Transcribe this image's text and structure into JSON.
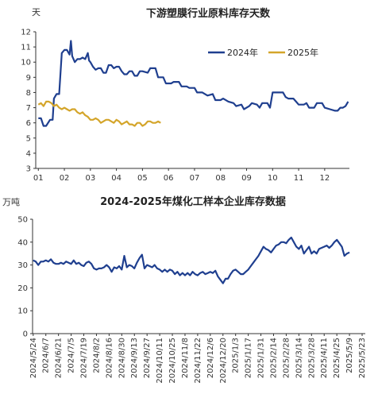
{
  "chart_data": [
    {
      "type": "line",
      "title": "下游塑膜行业原料库存天数",
      "ylabel": "天",
      "ylim": [
        3,
        12
      ],
      "yticks": [
        3,
        4,
        5,
        6,
        7,
        8,
        9,
        10,
        11,
        12
      ],
      "xlim": [
        0.9,
        12.95
      ],
      "xticks": [
        1,
        2,
        3,
        4,
        5,
        6,
        7,
        8,
        9,
        10,
        11,
        12
      ],
      "xtick_labels": [
        "01",
        "02",
        "03",
        "04",
        "05",
        "06",
        "07",
        "08",
        "09",
        "10",
        "11",
        "12"
      ],
      "grid": false,
      "legend": "top-right",
      "series": [
        {
          "name": "2024年",
          "color": "#1f3f8f",
          "points": [
            [
              1.0,
              6.3
            ],
            [
              1.1,
              6.3
            ],
            [
              1.2,
              5.8
            ],
            [
              1.3,
              5.8
            ],
            [
              1.45,
              6.2
            ],
            [
              1.55,
              6.2
            ],
            [
              1.6,
              7.6
            ],
            [
              1.7,
              7.9
            ],
            [
              1.8,
              7.9
            ],
            [
              1.9,
              10.6
            ],
            [
              2.0,
              10.8
            ],
            [
              2.1,
              10.8
            ],
            [
              2.2,
              10.5
            ],
            [
              2.25,
              11.4
            ],
            [
              2.3,
              10.4
            ],
            [
              2.4,
              10.0
            ],
            [
              2.5,
              10.2
            ],
            [
              2.6,
              10.2
            ],
            [
              2.7,
              10.3
            ],
            [
              2.8,
              10.2
            ],
            [
              2.9,
              10.6
            ],
            [
              2.95,
              10.1
            ],
            [
              3.0,
              10.0
            ],
            [
              3.1,
              9.7
            ],
            [
              3.2,
              9.5
            ],
            [
              3.3,
              9.6
            ],
            [
              3.4,
              9.6
            ],
            [
              3.5,
              9.3
            ],
            [
              3.6,
              9.3
            ],
            [
              3.7,
              9.8
            ],
            [
              3.8,
              9.8
            ],
            [
              3.9,
              9.6
            ],
            [
              4.0,
              9.7
            ],
            [
              4.1,
              9.7
            ],
            [
              4.2,
              9.4
            ],
            [
              4.3,
              9.2
            ],
            [
              4.4,
              9.2
            ],
            [
              4.5,
              9.4
            ],
            [
              4.6,
              9.4
            ],
            [
              4.7,
              9.1
            ],
            [
              4.8,
              9.1
            ],
            [
              4.9,
              9.4
            ],
            [
              5.0,
              9.4
            ],
            [
              5.2,
              9.3
            ],
            [
              5.3,
              9.6
            ],
            [
              5.5,
              9.6
            ],
            [
              5.6,
              9.0
            ],
            [
              5.8,
              9.0
            ],
            [
              5.9,
              8.6
            ],
            [
              6.1,
              8.6
            ],
            [
              6.2,
              8.7
            ],
            [
              6.4,
              8.7
            ],
            [
              6.5,
              8.4
            ],
            [
              6.7,
              8.4
            ],
            [
              6.8,
              8.3
            ],
            [
              7.0,
              8.3
            ],
            [
              7.1,
              8.0
            ],
            [
              7.3,
              8.0
            ],
            [
              7.5,
              7.8
            ],
            [
              7.7,
              7.9
            ],
            [
              7.8,
              7.5
            ],
            [
              8.0,
              7.5
            ],
            [
              8.1,
              7.6
            ],
            [
              8.3,
              7.4
            ],
            [
              8.5,
              7.3
            ],
            [
              8.6,
              7.1
            ],
            [
              8.8,
              7.2
            ],
            [
              8.9,
              6.9
            ],
            [
              9.1,
              7.1
            ],
            [
              9.2,
              7.3
            ],
            [
              9.4,
              7.2
            ],
            [
              9.5,
              7.0
            ],
            [
              9.6,
              7.3
            ],
            [
              9.8,
              7.3
            ],
            [
              9.9,
              7.0
            ],
            [
              10.0,
              8.0
            ],
            [
              10.2,
              8.0
            ],
            [
              10.4,
              8.0
            ],
            [
              10.5,
              7.7
            ],
            [
              10.6,
              7.6
            ],
            [
              10.8,
              7.6
            ],
            [
              10.9,
              7.4
            ],
            [
              11.0,
              7.2
            ],
            [
              11.2,
              7.2
            ],
            [
              11.3,
              7.3
            ],
            [
              11.4,
              7.0
            ],
            [
              11.6,
              7.0
            ],
            [
              11.7,
              7.3
            ],
            [
              11.9,
              7.3
            ],
            [
              12.0,
              7.0
            ],
            [
              12.2,
              6.9
            ],
            [
              12.4,
              6.8
            ],
            [
              12.5,
              6.8
            ],
            [
              12.6,
              7.0
            ],
            [
              12.7,
              7.0
            ],
            [
              12.8,
              7.1
            ],
            [
              12.9,
              7.4
            ]
          ]
        },
        {
          "name": "2025年",
          "color": "#d4a52a",
          "points": [
            [
              1.0,
              7.2
            ],
            [
              1.1,
              7.3
            ],
            [
              1.2,
              7.1
            ],
            [
              1.3,
              7.4
            ],
            [
              1.4,
              7.4
            ],
            [
              1.5,
              7.3
            ],
            [
              1.6,
              7.1
            ],
            [
              1.7,
              7.2
            ],
            [
              1.8,
              7.0
            ],
            [
              1.9,
              6.9
            ],
            [
              2.0,
              7.0
            ],
            [
              2.1,
              6.9
            ],
            [
              2.2,
              6.8
            ],
            [
              2.3,
              6.9
            ],
            [
              2.4,
              6.9
            ],
            [
              2.5,
              6.7
            ],
            [
              2.6,
              6.6
            ],
            [
              2.7,
              6.7
            ],
            [
              2.8,
              6.5
            ],
            [
              2.9,
              6.4
            ],
            [
              3.0,
              6.2
            ],
            [
              3.1,
              6.2
            ],
            [
              3.2,
              6.3
            ],
            [
              3.3,
              6.2
            ],
            [
              3.4,
              6.0
            ],
            [
              3.5,
              6.1
            ],
            [
              3.6,
              6.2
            ],
            [
              3.7,
              6.2
            ],
            [
              3.8,
              6.1
            ],
            [
              3.9,
              6.0
            ],
            [
              4.0,
              6.2
            ],
            [
              4.1,
              6.1
            ],
            [
              4.2,
              5.9
            ],
            [
              4.3,
              6.0
            ],
            [
              4.4,
              6.1
            ],
            [
              4.5,
              5.9
            ],
            [
              4.6,
              5.9
            ],
            [
              4.7,
              5.8
            ],
            [
              4.8,
              6.0
            ],
            [
              4.9,
              6.0
            ],
            [
              5.0,
              5.8
            ],
            [
              5.1,
              5.9
            ],
            [
              5.2,
              6.1
            ],
            [
              5.3,
              6.1
            ],
            [
              5.4,
              6.0
            ],
            [
              5.5,
              6.0
            ],
            [
              5.6,
              6.1
            ],
            [
              5.7,
              6.0
            ]
          ]
        }
      ]
    },
    {
      "type": "line",
      "title": "2024-2025年煤化工样本企业库存数据",
      "ylabel": "万吨",
      "ylim": [
        0,
        50
      ],
      "yticks": [
        0,
        10,
        20,
        30,
        40,
        50
      ],
      "grid": false,
      "legend": "none",
      "x": [
        "2024/5/24",
        "2024/6/7",
        "2024/6/21",
        "2024/7/5",
        "2024/7/19",
        "2024/8/2",
        "2024/8/16",
        "2024/8/30",
        "2024/9/13",
        "2024/9/27",
        "2024/10/11",
        "2024/10/25",
        "2024/11/8",
        "2024/11/22",
        "2024/12/6",
        "2024/12/20",
        "2025/1/3",
        "2025/1/17",
        "2025/1/31",
        "2025/2/14",
        "2025/2/28",
        "2025/3/14",
        "2025/3/28",
        "2025/4/11",
        "2025/4/25",
        "2025/5/9",
        "2025/5/23"
      ],
      "series": [
        {
          "name": "",
          "color": "#1f3f8f",
          "points": [
            [
              0,
              32
            ],
            [
              0.2,
              31.5
            ],
            [
              0.4,
              30
            ],
            [
              0.6,
              31.5
            ],
            [
              0.8,
              31.5
            ],
            [
              1.0,
              32
            ],
            [
              1.2,
              31.5
            ],
            [
              1.4,
              32.5
            ],
            [
              1.6,
              31
            ],
            [
              1.8,
              30.5
            ],
            [
              2.0,
              30.5
            ],
            [
              2.2,
              31
            ],
            [
              2.4,
              30.5
            ],
            [
              2.6,
              31.5
            ],
            [
              2.8,
              31
            ],
            [
              3.0,
              30.5
            ],
            [
              3.2,
              32
            ],
            [
              3.4,
              30.5
            ],
            [
              3.6,
              31
            ],
            [
              3.8,
              30
            ],
            [
              4.0,
              29.5
            ],
            [
              4.2,
              31
            ],
            [
              4.4,
              31.5
            ],
            [
              4.6,
              30.5
            ],
            [
              4.8,
              28.5
            ],
            [
              5.0,
              28
            ],
            [
              5.2,
              28.5
            ],
            [
              5.4,
              28.5
            ],
            [
              5.6,
              29
            ],
            [
              5.8,
              30
            ],
            [
              6.0,
              29
            ],
            [
              6.2,
              27
            ],
            [
              6.4,
              29
            ],
            [
              6.6,
              28.5
            ],
            [
              6.8,
              29.5
            ],
            [
              7.0,
              28
            ],
            [
              7.2,
              34
            ],
            [
              7.4,
              29
            ],
            [
              7.6,
              30
            ],
            [
              7.8,
              29.5
            ],
            [
              8.0,
              28.5
            ],
            [
              8.2,
              31
            ],
            [
              8.4,
              33
            ],
            [
              8.6,
              34.5
            ],
            [
              8.8,
              28.5
            ],
            [
              9.0,
              30
            ],
            [
              9.2,
              29.5
            ],
            [
              9.4,
              29
            ],
            [
              9.6,
              30
            ],
            [
              9.8,
              28.5
            ],
            [
              10.0,
              28
            ],
            [
              10.2,
              27
            ],
            [
              10.4,
              28
            ],
            [
              10.6,
              27
            ],
            [
              10.8,
              28
            ],
            [
              11.0,
              27.5
            ],
            [
              11.2,
              26
            ],
            [
              11.4,
              27
            ],
            [
              11.6,
              25.5
            ],
            [
              11.8,
              26.5
            ],
            [
              12.0,
              25.5
            ],
            [
              12.2,
              26.5
            ],
            [
              12.4,
              25.5
            ],
            [
              12.6,
              27
            ],
            [
              12.8,
              26
            ],
            [
              13.0,
              25.5
            ],
            [
              13.2,
              26.5
            ],
            [
              13.4,
              27
            ],
            [
              13.6,
              26
            ],
            [
              13.8,
              26.5
            ],
            [
              14.0,
              27
            ],
            [
              14.2,
              26.5
            ],
            [
              14.4,
              27.5
            ],
            [
              14.6,
              25
            ],
            [
              14.8,
              23.5
            ],
            [
              15.0,
              22
            ],
            [
              15.2,
              24
            ],
            [
              15.4,
              24
            ],
            [
              15.6,
              26
            ],
            [
              15.8,
              27.5
            ],
            [
              16.0,
              28
            ],
            [
              16.2,
              27
            ],
            [
              16.4,
              26
            ],
            [
              16.6,
              26
            ],
            [
              16.8,
              27
            ],
            [
              17.0,
              28
            ],
            [
              17.2,
              29.5
            ],
            [
              17.4,
              31
            ],
            [
              17.6,
              32.5
            ],
            [
              17.8,
              34
            ],
            [
              18.0,
              36
            ],
            [
              18.2,
              38
            ],
            [
              18.4,
              37
            ],
            [
              18.6,
              36.5
            ],
            [
              18.8,
              35.5
            ],
            [
              19.0,
              37
            ],
            [
              19.2,
              38.5
            ],
            [
              19.4,
              39
            ],
            [
              19.6,
              40
            ],
            [
              19.8,
              40
            ],
            [
              20.0,
              39.5
            ],
            [
              20.2,
              41
            ],
            [
              20.4,
              42
            ],
            [
              20.6,
              40
            ],
            [
              20.8,
              38
            ],
            [
              21.0,
              37
            ],
            [
              21.2,
              38.5
            ],
            [
              21.4,
              35
            ],
            [
              21.6,
              36.5
            ],
            [
              21.8,
              38
            ],
            [
              22.0,
              35
            ],
            [
              22.2,
              36
            ],
            [
              22.4,
              35
            ],
            [
              22.6,
              37
            ],
            [
              22.8,
              37.5
            ],
            [
              23.0,
              38
            ],
            [
              23.2,
              38.5
            ],
            [
              23.4,
              37.5
            ],
            [
              23.6,
              38.5
            ],
            [
              23.8,
              40
            ],
            [
              24.0,
              41
            ],
            [
              24.2,
              39.5
            ],
            [
              24.4,
              38
            ],
            [
              24.6,
              34
            ],
            [
              24.8,
              35
            ],
            [
              25.0,
              35.5
            ]
          ]
        }
      ]
    }
  ]
}
